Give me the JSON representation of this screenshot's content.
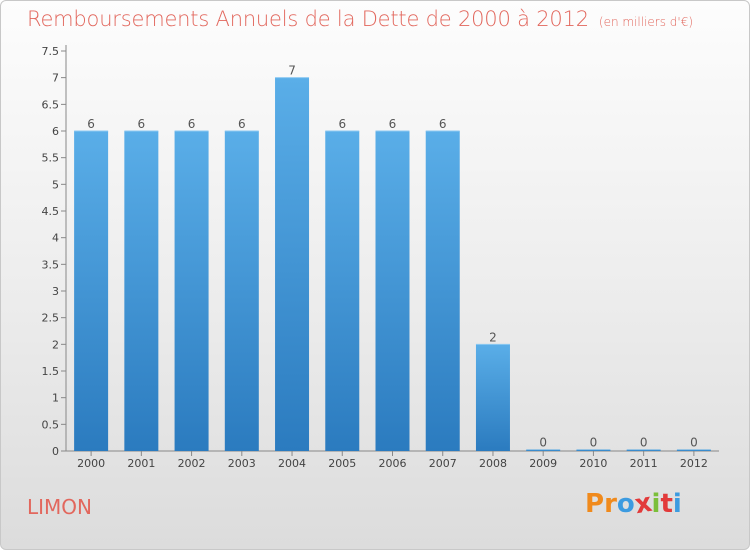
{
  "header": {
    "title": "Remboursements Annuels de la Dette de 2000 à 2012",
    "unit": "(en milliers d'€)"
  },
  "footer": {
    "place": "LIMON",
    "logo": [
      "P",
      "r",
      "o",
      "x",
      "i",
      "t",
      "i"
    ]
  },
  "colors": {
    "bar_top": "#5aaee8",
    "bar_bottom": "#2b7bbf",
    "title": "#e2675d",
    "logo": [
      "#f08a1c",
      "#f08a1c",
      "#3c9be0",
      "#e23a3a",
      "#7bbf3a",
      "#e23a3a",
      "#3c9be0"
    ]
  },
  "chart_data": {
    "type": "bar",
    "categories": [
      "2000",
      "2001",
      "2002",
      "2003",
      "2004",
      "2005",
      "2006",
      "2007",
      "2008",
      "2009",
      "2010",
      "2011",
      "2012"
    ],
    "values": [
      6,
      6,
      6,
      6,
      7,
      6,
      6,
      6,
      2,
      0,
      0,
      0,
      0
    ],
    "data_labels": [
      "6",
      "6",
      "6",
      "6",
      "7",
      "6",
      "6",
      "6",
      "2",
      "0",
      "0",
      "0",
      "0"
    ],
    "ylim": [
      0,
      7.5
    ],
    "yticks": [
      0,
      0.5,
      1,
      1.5,
      2,
      2.5,
      3,
      3.5,
      4,
      4.5,
      5,
      5.5,
      6,
      6.5,
      7,
      7.5
    ],
    "ytick_labels": [
      "0",
      "0.5",
      "1",
      "1.5",
      "2",
      "2.5",
      "3",
      "3.5",
      "4",
      "4.5",
      "5",
      "5.5",
      "6",
      "6.5",
      "7",
      "7.5"
    ],
    "grid": false,
    "xlabel": "",
    "ylabel": ""
  }
}
